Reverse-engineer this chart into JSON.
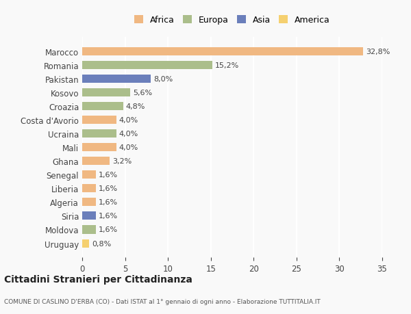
{
  "categories": [
    "Marocco",
    "Romania",
    "Pakistan",
    "Kosovo",
    "Croazia",
    "Costa d'Avorio",
    "Ucraina",
    "Mali",
    "Ghana",
    "Senegal",
    "Liberia",
    "Algeria",
    "Siria",
    "Moldova",
    "Uruguay"
  ],
  "values": [
    32.8,
    15.2,
    8.0,
    5.6,
    4.8,
    4.0,
    4.0,
    4.0,
    3.2,
    1.6,
    1.6,
    1.6,
    1.6,
    1.6,
    0.8
  ],
  "labels": [
    "32,8%",
    "15,2%",
    "8,0%",
    "5,6%",
    "4,8%",
    "4,0%",
    "4,0%",
    "4,0%",
    "3,2%",
    "1,6%",
    "1,6%",
    "1,6%",
    "1,6%",
    "1,6%",
    "0,8%"
  ],
  "colors": [
    "#F0B882",
    "#ABBE8B",
    "#6B7FBB",
    "#ABBE8B",
    "#ABBE8B",
    "#F0B882",
    "#ABBE8B",
    "#F0B882",
    "#F0B882",
    "#F0B882",
    "#F0B882",
    "#F0B882",
    "#6B7FBB",
    "#ABBE8B",
    "#F5D070"
  ],
  "legend_labels": [
    "Africa",
    "Europa",
    "Asia",
    "America"
  ],
  "legend_colors": [
    "#F0B882",
    "#ABBE8B",
    "#6B7FBB",
    "#F5D070"
  ],
  "title": "Cittadini Stranieri per Cittadinanza",
  "subtitle": "COMUNE DI CASLINO D'ERBA (CO) - Dati ISTAT al 1° gennaio di ogni anno - Elaborazione TUTTITALIA.IT",
  "xlim": [
    0,
    35
  ],
  "xticks": [
    0,
    5,
    10,
    15,
    20,
    25,
    30,
    35
  ],
  "background_color": "#f9f9f9",
  "grid_color": "#ffffff",
  "bar_height": 0.6
}
